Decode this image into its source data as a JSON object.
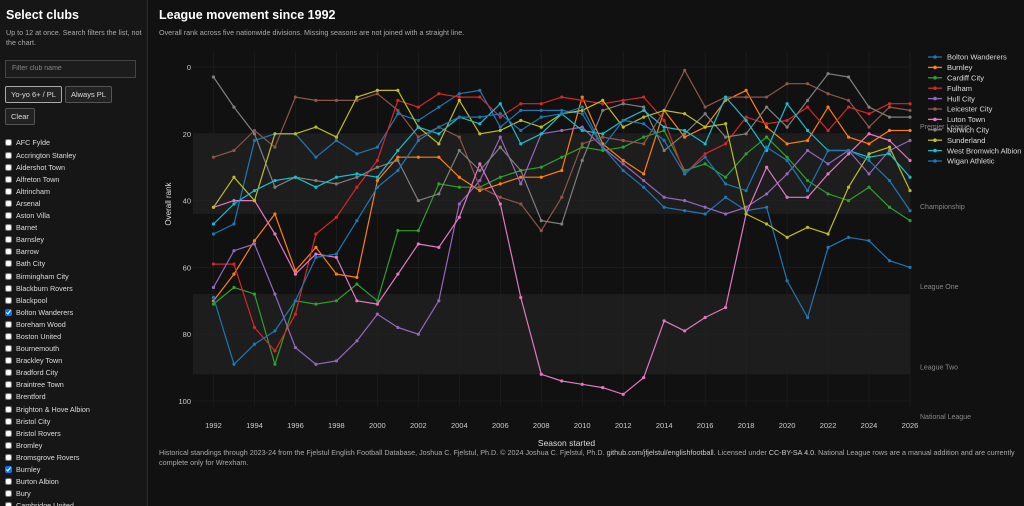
{
  "sidebar": {
    "title": "Select clubs",
    "help": "Up to 12 at once. Search filters the list, not the chart.",
    "filter_placeholder": "Filter club name",
    "buttons": {
      "yoyo": "Yo-yo 6+ / PL",
      "always": "Always PL",
      "clear": "Clear"
    },
    "clubs": [
      {
        "name": "AFC Fylde",
        "checked": false
      },
      {
        "name": "Accrington Stanley",
        "checked": false
      },
      {
        "name": "Aldershot Town",
        "checked": false
      },
      {
        "name": "Alfreton Town",
        "checked": false
      },
      {
        "name": "Altrincham",
        "checked": false
      },
      {
        "name": "Arsenal",
        "checked": false
      },
      {
        "name": "Aston Villa",
        "checked": false
      },
      {
        "name": "Barnet",
        "checked": false
      },
      {
        "name": "Barnsley",
        "checked": false
      },
      {
        "name": "Barrow",
        "checked": false
      },
      {
        "name": "Bath City",
        "checked": false
      },
      {
        "name": "Birmingham City",
        "checked": false
      },
      {
        "name": "Blackburn Rovers",
        "checked": false
      },
      {
        "name": "Blackpool",
        "checked": false
      },
      {
        "name": "Bolton Wanderers",
        "checked": true
      },
      {
        "name": "Boreham Wood",
        "checked": false
      },
      {
        "name": "Boston United",
        "checked": false
      },
      {
        "name": "Bournemouth",
        "checked": false
      },
      {
        "name": "Brackley Town",
        "checked": false
      },
      {
        "name": "Bradford City",
        "checked": false
      },
      {
        "name": "Braintree Town",
        "checked": false
      },
      {
        "name": "Brentford",
        "checked": false
      },
      {
        "name": "Brighton & Hove Albion",
        "checked": false
      },
      {
        "name": "Bristol City",
        "checked": false
      },
      {
        "name": "Bristol Rovers",
        "checked": false
      },
      {
        "name": "Bromley",
        "checked": false
      },
      {
        "name": "Bromsgrove Rovers",
        "checked": false
      },
      {
        "name": "Burnley",
        "checked": true
      },
      {
        "name": "Burton Albion",
        "checked": false
      },
      {
        "name": "Bury",
        "checked": false
      },
      {
        "name": "Cambridge United",
        "checked": false
      }
    ]
  },
  "main": {
    "title": "League movement since 1992",
    "subtitle": "Overall rank across five nationwide divisions. Missing seasons are not joined with a straight line.",
    "footer": {
      "text1": "Historical standings through 2023-24 from the Fjelstul English Football Database, Joshua C. Fjelstul, Ph.D. © 2024 Joshua C. Fjelstul, Ph.D. ",
      "link1": "github.com/jfjelstul/englishfootball",
      "text2": ". Licensed under ",
      "link2": "CC-BY-SA 4.0",
      "text3": ". National League rows are a manual addition and are currently complete only for Wrexham."
    }
  },
  "chart_data": {
    "type": "line",
    "title": "League movement since 1992",
    "xlabel": "Season started",
    "ylabel": "Overall rank",
    "xlim": [
      1991,
      2026
    ],
    "ylim": [
      0,
      100
    ],
    "y_inverted": true,
    "xticks": [
      1992,
      1994,
      1996,
      1998,
      2000,
      2002,
      2004,
      2006,
      2008,
      2010,
      2012,
      2014,
      2016,
      2018,
      2020,
      2022,
      2024,
      2026
    ],
    "yticks": [
      0,
      20,
      40,
      60,
      80,
      100
    ],
    "bands": [
      {
        "label": "Premier League",
        "from": 0,
        "to": 20,
        "shaded": false
      },
      {
        "label": "Championship",
        "from": 20,
        "to": 44,
        "shaded": true
      },
      {
        "label": "League One",
        "from": 44,
        "to": 68,
        "shaded": false
      },
      {
        "label": "League Two",
        "from": 68,
        "to": 92,
        "shaded": true
      },
      {
        "label": "National League",
        "from": 92,
        "to": 104,
        "shaded": false
      }
    ],
    "legend_position": "right",
    "series": [
      {
        "name": "Bolton Wanderers",
        "color": "#1f77b4",
        "values": [
          50,
          47,
          22,
          20,
          20,
          27,
          22,
          26,
          24,
          14,
          16,
          12,
          8,
          7,
          18,
          13,
          13,
          13,
          14,
          24,
          31,
          36,
          42,
          43,
          44,
          39,
          43,
          42,
          64,
          75,
          54,
          51,
          52,
          58,
          60
        ]
      },
      {
        "name": "Burnley",
        "color": "#ff7f0e",
        "values": [
          70,
          62,
          52,
          44,
          61,
          54,
          62,
          63,
          34,
          27,
          27,
          27,
          33,
          37,
          35,
          33,
          33,
          31,
          9,
          23,
          28,
          32,
          13,
          21,
          18,
          10,
          7,
          18,
          23,
          22,
          12,
          21,
          23,
          19,
          19
        ]
      },
      {
        "name": "Cardiff City",
        "color": "#2ca02c",
        "values": [
          71,
          66,
          68,
          89,
          70,
          71,
          70,
          65,
          70,
          49,
          49,
          35,
          36,
          36,
          33,
          31,
          30,
          27,
          24,
          25,
          24,
          21,
          19,
          31,
          29,
          33,
          26,
          21,
          27,
          34,
          38,
          40,
          36,
          42,
          46
        ]
      },
      {
        "name": "Fulham",
        "color": "#d62728",
        "values": [
          59,
          59,
          78,
          85,
          74,
          50,
          45,
          36,
          28,
          10,
          12,
          8,
          9,
          9,
          15,
          11,
          11,
          9,
          10,
          11,
          10,
          9,
          16,
          32,
          26,
          23,
          15,
          17,
          16,
          12,
          19,
          12,
          14,
          11,
          11
        ]
      },
      {
        "name": "Hull City",
        "color": "#9467bd",
        "values": [
          66,
          55,
          53,
          68,
          84,
          89,
          88,
          82,
          74,
          78,
          80,
          70,
          41,
          34,
          21,
          35,
          20,
          19,
          18,
          24,
          29,
          34,
          39,
          40,
          42,
          44,
          42,
          38,
          32,
          25,
          29,
          25,
          32,
          25,
          22
        ]
      },
      {
        "name": "Leicester City",
        "color": "#8c564b",
        "values": [
          27,
          25,
          19,
          24,
          9,
          10,
          10,
          10,
          8,
          13,
          21,
          18,
          21,
          36,
          39,
          41,
          49,
          39,
          23,
          21,
          22,
          23,
          13,
          1,
          12,
          9,
          9,
          9,
          5,
          5,
          8,
          10,
          18,
          12,
          13
        ]
      },
      {
        "name": "Luton Town",
        "color": "#e377c2",
        "values": [
          42,
          40,
          40,
          50,
          62,
          56,
          57,
          70,
          71,
          62,
          53,
          54,
          45,
          29,
          41,
          69,
          92,
          94,
          95,
          96,
          98,
          93,
          76,
          79,
          75,
          72,
          44,
          30,
          39,
          39,
          32,
          26,
          20,
          22,
          28
        ]
      },
      {
        "name": "Norwich City",
        "color": "#7f7f7f",
        "values": [
          3,
          12,
          20,
          36,
          33,
          34,
          35,
          33,
          30,
          28,
          40,
          38,
          25,
          31,
          24,
          31,
          46,
          47,
          28,
          13,
          11,
          12,
          25,
          20,
          14,
          21,
          20,
          12,
          18,
          10,
          2,
          3,
          12,
          15,
          15
        ]
      },
      {
        "name": "Sunderland",
        "color": "#bcbd22",
        "values": [
          42,
          33,
          40,
          20,
          20,
          18,
          21,
          9,
          7,
          7,
          18,
          23,
          10,
          20,
          19,
          16,
          18,
          14,
          13,
          10,
          18,
          15,
          13,
          14,
          18,
          17,
          44,
          47,
          51,
          48,
          50,
          36,
          26,
          24,
          37
        ]
      },
      {
        "name": "West Bromwich Albion",
        "color": "#17becf",
        "values": [
          47,
          41,
          37,
          34,
          33,
          36,
          33,
          32,
          33,
          25,
          18,
          20,
          15,
          17,
          11,
          23,
          20,
          14,
          19,
          20,
          16,
          13,
          18,
          19,
          23,
          9,
          16,
          25,
          11,
          19,
          25,
          25,
          27,
          26,
          33
        ]
      },
      {
        "name": "Wigan Athletic",
        "color": "#1f77b4",
        "values": [
          69,
          89,
          83,
          79,
          70,
          57,
          56,
          46,
          36,
          31,
          22,
          18,
          15,
          15,
          14,
          19,
          15,
          14,
          12,
          24,
          16,
          17,
          22,
          32,
          27,
          35,
          37,
          24,
          28,
          37,
          25,
          25,
          28,
          34,
          43
        ]
      }
    ]
  }
}
